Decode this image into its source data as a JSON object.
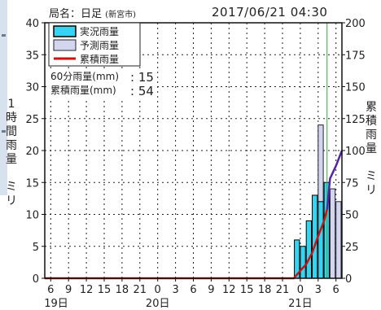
{
  "header": {
    "station_prefix": "局名：",
    "station_name": "日足",
    "station_city": "(新宮市)",
    "datetime": "2017/06/21  04:30"
  },
  "left_axis_label": [
    "1",
    "時",
    "間",
    "雨",
    "量",
    "",
    "ミ",
    "リ"
  ],
  "right_axis_label": [
    "累",
    "積",
    "雨",
    "量",
    "",
    "ミ",
    "リ"
  ],
  "legend": {
    "actual": "実況雨量",
    "forecast": "予測雨量",
    "cumulative": "累積雨量"
  },
  "stats": {
    "rain60_label": "60分雨量(mm)",
    "rain60_value": ": 15",
    "cumulative_label": "累積雨量(mm)",
    "cumulative_value": ": 54"
  },
  "colors": {
    "actual": "#35d5f2",
    "forecast": "#d4d6ee",
    "cumulative": "#cc1111",
    "cumulative_forecast": "#5522aa",
    "now_line": "#33aa33",
    "grid": "#222222"
  },
  "chart_data": {
    "type": "bar",
    "x_start_date": "19日 05時",
    "x_tick_labels": [
      "6",
      "9",
      "12",
      "15",
      "18",
      "21",
      "0",
      "3",
      "6",
      "9",
      "12",
      "15",
      "18",
      "21",
      "0",
      "3",
      "6"
    ],
    "x_tick_hours": [
      1,
      4,
      7,
      10,
      13,
      16,
      19,
      22,
      25,
      28,
      31,
      34,
      37,
      40,
      43,
      46,
      49
    ],
    "date_labels": [
      {
        "text": "19日",
        "hour": 0
      },
      {
        "text": "20日",
        "hour": 19
      },
      {
        "text": "21日",
        "hour": 43
      }
    ],
    "y_left_ticks": [
      0,
      5,
      10,
      15,
      20,
      25,
      30,
      35,
      40
    ],
    "y_right_ticks": [
      0,
      25,
      50,
      75,
      100,
      125,
      150,
      175,
      200
    ],
    "ylim_left": [
      0,
      40
    ],
    "ylim_right": [
      0,
      200
    ],
    "now_hour": 47.5,
    "actual_bars": [
      {
        "hour": 42.0,
        "value": 6
      },
      {
        "hour": 43.0,
        "value": 5
      },
      {
        "hour": 44.0,
        "value": 9
      },
      {
        "hour": 45.0,
        "value": 13
      },
      {
        "hour": 46.0,
        "value": 12
      },
      {
        "hour": 47.0,
        "value": 15
      }
    ],
    "forecast_bars": [
      {
        "hour": 46.0,
        "value": 24
      },
      {
        "hour": 47.0,
        "value": 8
      },
      {
        "hour": 48.0,
        "value": 14
      },
      {
        "hour": 49.0,
        "value": 12
      }
    ],
    "cumulative": [
      {
        "hour": 0,
        "value": 0
      },
      {
        "hour": 41.9,
        "value": 0
      },
      {
        "hour": 43,
        "value": 6
      },
      {
        "hour": 44,
        "value": 11
      },
      {
        "hour": 45,
        "value": 20
      },
      {
        "hour": 46,
        "value": 33
      },
      {
        "hour": 47,
        "value": 45
      },
      {
        "hour": 47.5,
        "value": 54
      }
    ],
    "cumulative_forecast": [
      {
        "hour": 47.5,
        "value": 54
      },
      {
        "hour": 48,
        "value": 78
      },
      {
        "hour": 49,
        "value": 88
      },
      {
        "hour": 50,
        "value": 100
      }
    ]
  }
}
